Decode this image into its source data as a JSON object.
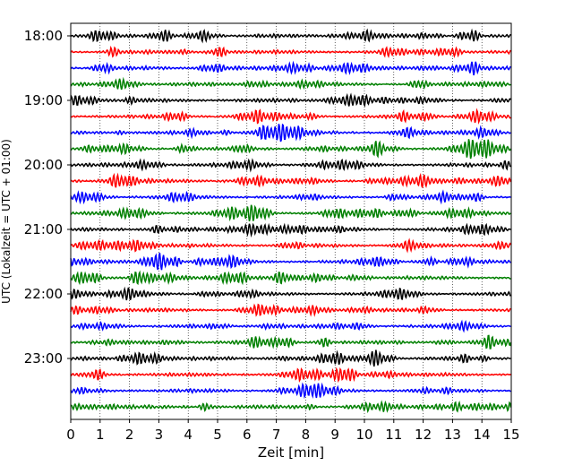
{
  "chart_data": {
    "type": "line",
    "title": "",
    "xlabel": "Zeit  [min]",
    "ylabel": "UTC (Lokalzeit = UTC + 01:00)",
    "xlim": [
      0,
      15
    ],
    "x_ticks": [
      "0",
      "1",
      "2",
      "3",
      "4",
      "5",
      "6",
      "7",
      "8",
      "9",
      "10",
      "11",
      "12",
      "13",
      "14",
      "15"
    ],
    "y_ticks": [
      "18:00",
      "19:00",
      "20:00",
      "21:00",
      "22:00",
      "23:00"
    ],
    "trace_start": "18:00",
    "trace_interval_min": 15,
    "trace_count": 24,
    "trace_colors": [
      "#000000",
      "#ff0000",
      "#0000ff",
      "#008000"
    ],
    "grid": "vertical dotted lines at each minute"
  }
}
